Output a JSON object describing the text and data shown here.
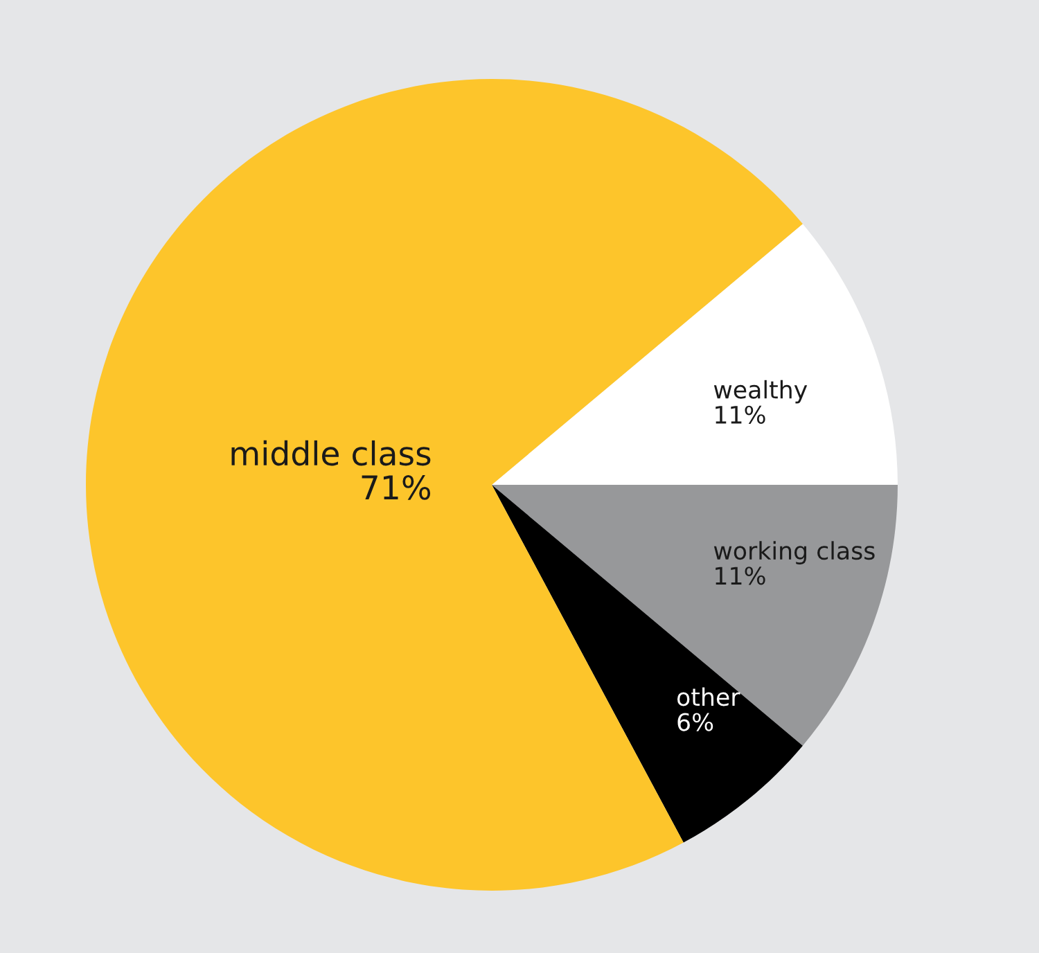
{
  "chart_data": {
    "type": "pie",
    "categories": [
      "wealthy",
      "working class",
      "other",
      "middle class"
    ],
    "values": [
      11,
      11,
      6,
      71
    ],
    "value_labels": [
      "11%",
      "11%",
      "6%",
      "71%"
    ],
    "colors": [
      "#ffffff",
      "#97989a",
      "#000000",
      "#fdc52b"
    ]
  }
}
